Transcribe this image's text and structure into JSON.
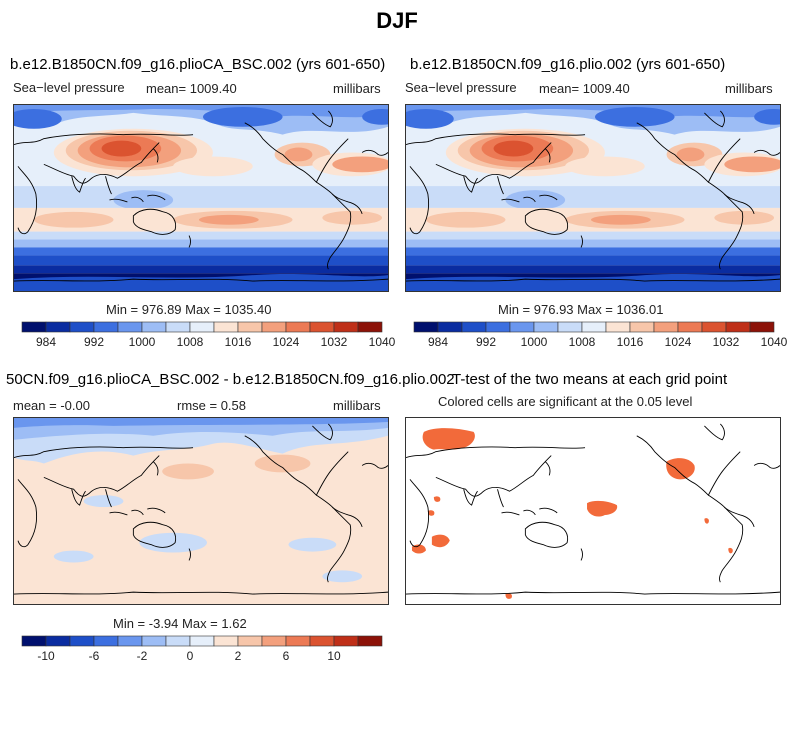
{
  "page_title": "DJF",
  "panels": [
    {
      "title": "b.e12.B1850CN.f09_g16.plioCA_BSC.002 (yrs 601-650)",
      "left_label": "Sea−level pressure",
      "center_label": "mean=  1009.40",
      "right_label": "millibars",
      "stats": "Min = 976.89 Max = 1035.40"
    },
    {
      "title": "b.e12.B1850CN.f09_g16.plio.002 (yrs 601-650)",
      "left_label": "Sea−level pressure",
      "center_label": "mean=  1009.40",
      "right_label": "millibars",
      "stats": "Min = 976.93 Max = 1036.01"
    },
    {
      "title": "50CN.f09_g16.plioCA_BSC.002 - b.e12.B1850CN.f09_g16.plio.002",
      "left_label": "mean =  -0.00",
      "center_label": "rmse =   0.58",
      "right_label": "millibars",
      "stats": "Min =  -3.94 Max =   1.62"
    },
    {
      "title": "T-test of the two means at each grid point",
      "subtitle": "Colored cells are significant at the 0.05 level"
    }
  ],
  "colors": {
    "levels_abs": [
      "#00106e",
      "#0a2ca0",
      "#1e4fc8",
      "#3c6fe0",
      "#6a96ee",
      "#9dbdf5",
      "#c9dcf8",
      "#e6effa",
      "#fbe4d4",
      "#f7c6aa",
      "#f3a07d",
      "#ec7a55",
      "#db5330",
      "#bf2f18",
      "#8c1208"
    ],
    "significant": "#f26a3a"
  },
  "chart_data": [
    {
      "type": "heatmap",
      "title": "b.e12.B1850CN.f09_g16.plioCA_BSC.002 (yrs 601-650)",
      "variable": "Sea−level pressure",
      "units": "millibars",
      "mean": 1009.4,
      "min": 976.89,
      "max": 1035.4,
      "colorbar_ticks": [
        984,
        992,
        1000,
        1008,
        1016,
        1024,
        1032,
        1040
      ]
    },
    {
      "type": "heatmap",
      "title": "b.e12.B1850CN.f09_g16.plio.002 (yrs 601-650)",
      "variable": "Sea−level pressure",
      "units": "millibars",
      "mean": 1009.4,
      "min": 976.93,
      "max": 1036.01,
      "colorbar_ticks": [
        984,
        992,
        1000,
        1008,
        1016,
        1024,
        1032,
        1040
      ]
    },
    {
      "type": "heatmap",
      "title": "50CN.f09_g16.plioCA_BSC.002 - b.e12.B1850CN.f09_g16.plio.002",
      "units": "millibars",
      "mean": -0.0,
      "rmse": 0.58,
      "min": -3.94,
      "max": 1.62,
      "colorbar_ticks": [
        -10,
        -6,
        -2,
        0,
        2,
        6,
        10
      ]
    },
    {
      "type": "heatmap",
      "title": "T-test of the two means at each grid point",
      "subtitle": "Colored cells are significant at the 0.05 level"
    }
  ]
}
